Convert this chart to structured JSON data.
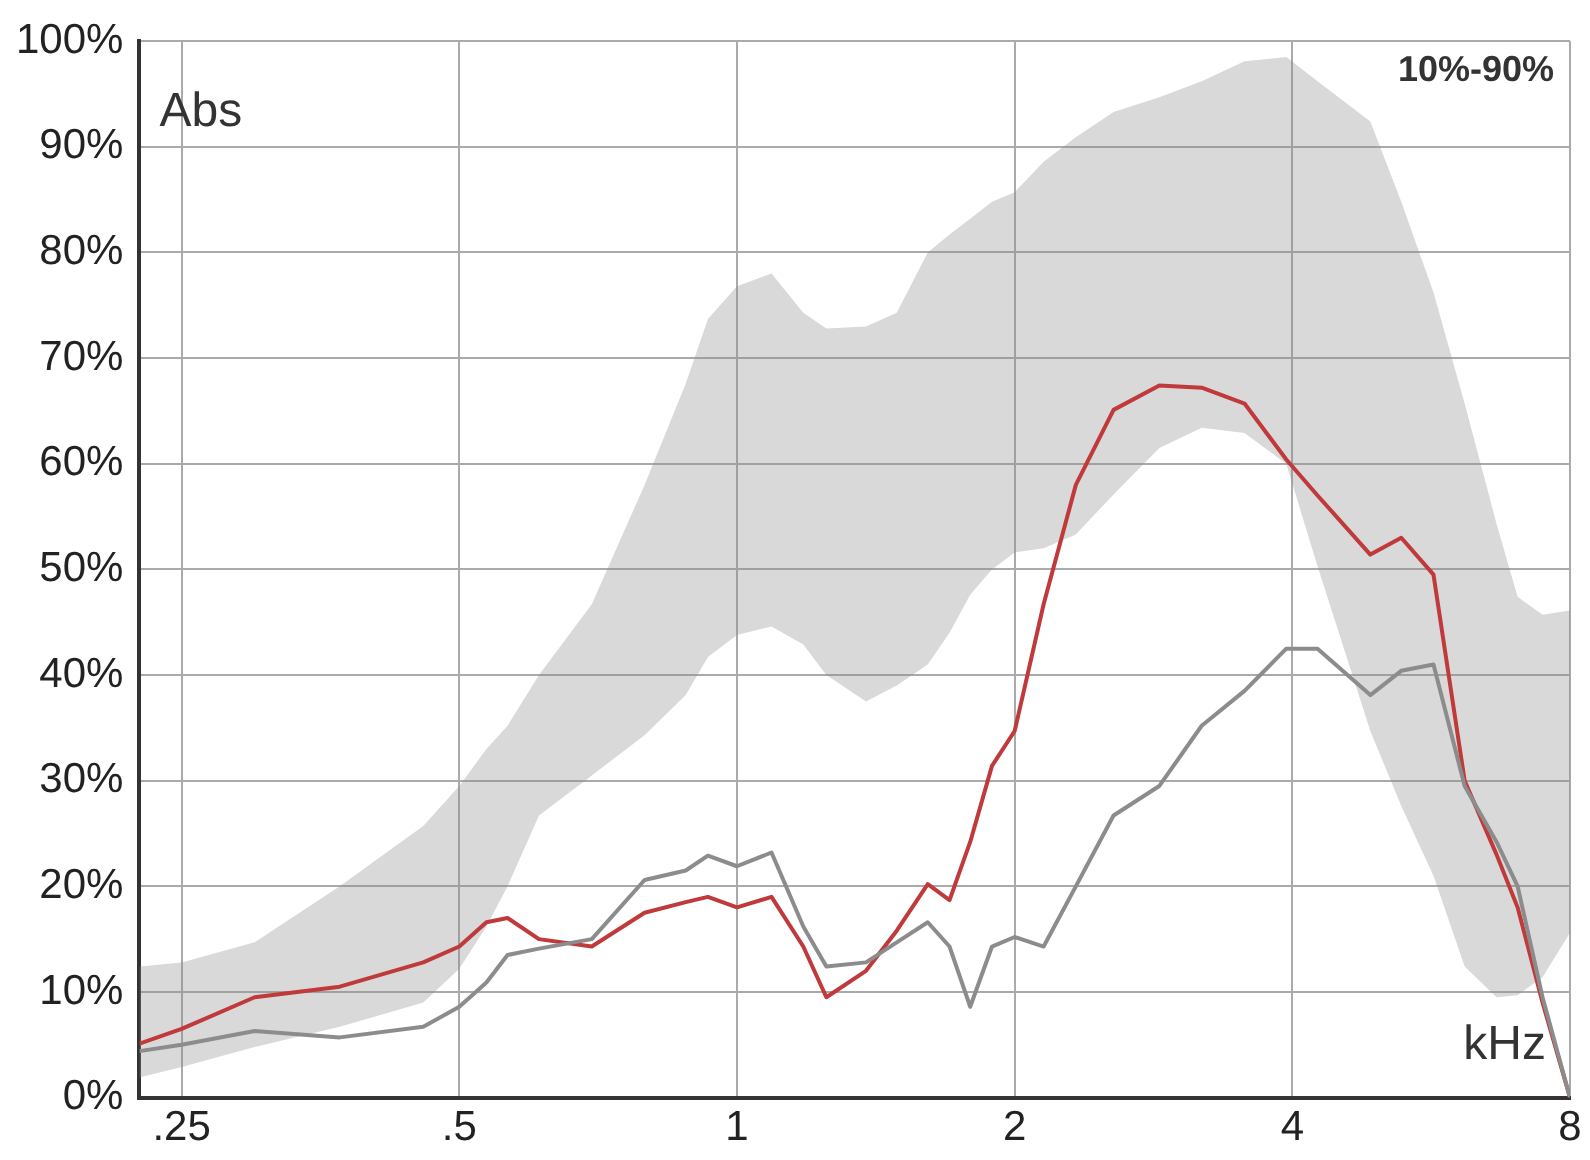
{
  "chart_data": {
    "type": "line",
    "xlabel": "kHz",
    "ylabel": "Abs",
    "log": "x",
    "grid": true,
    "legend": false,
    "marker": "none",
    "line_style": "solid",
    "annotations": [
      "10%-90%"
    ],
    "x": [
      0.225,
      0.25,
      0.3,
      0.371,
      0.457,
      0.5,
      0.535,
      0.564,
      0.61,
      0.696,
      0.794,
      0.88,
      0.93,
      1,
      1.09,
      1.18,
      1.25,
      1.38,
      1.49,
      1.61,
      1.7,
      1.79,
      1.89,
      2,
      2.15,
      2.33,
      2.56,
      2.87,
      3.19,
      3.55,
      3.94,
      4.26,
      4.86,
      5.25,
      5.69,
      6.15,
      6.66,
      7.02,
      7.47,
      8
    ],
    "xlim": [
      0.225,
      8
    ],
    "xticks": [
      {
        "value": 0.25,
        "label": ".25"
      },
      {
        "value": 0.5,
        "label": ".5"
      },
      1,
      2,
      4,
      8
    ],
    "ylim": [
      0,
      100
    ],
    "yticks": [
      {
        "value": 0,
        "label": "0%"
      },
      {
        "value": 10,
        "label": "10%"
      },
      {
        "value": 20,
        "label": "20%"
      },
      {
        "value": 30,
        "label": "30%"
      },
      {
        "value": 40,
        "label": "40%"
      },
      {
        "value": 50,
        "label": "50%"
      },
      {
        "value": 60,
        "label": "60%"
      },
      {
        "value": 70,
        "label": "70%"
      },
      {
        "value": 80,
        "label": "80%"
      },
      {
        "value": 90,
        "label": "90%"
      },
      {
        "value": 100,
        "label": "100%"
      }
    ],
    "series": [
      {
        "color": "#8c8c8c",
        "lower": [
          1.9,
          2.9,
          4.8,
          6.7,
          9,
          12.2,
          16.2,
          20,
          26.7,
          30.5,
          34.3,
          38.1,
          41.7,
          43.8,
          44.6,
          42.9,
          40,
          37.5,
          39,
          41,
          44,
          47.6,
          50,
          51.6,
          52,
          53.3,
          57.1,
          61.5,
          63.4,
          62.9,
          60,
          50.3,
          34.7,
          27.6,
          21,
          12.4,
          9.5,
          9.7,
          11.4,
          15.6
        ],
        "upper": [
          12.4,
          12.8,
          14.7,
          20,
          25.7,
          29.5,
          33,
          35.2,
          40,
          46.7,
          58,
          67.6,
          73.7,
          76.8,
          78,
          74.3,
          72.8,
          73,
          74.3,
          80,
          81.7,
          83.2,
          84.8,
          85.7,
          88.6,
          90.9,
          93.3,
          94.7,
          96.2,
          98.1,
          98.5,
          96.2,
          92.4,
          84.8,
          76.2,
          65.7,
          54.3,
          47.4,
          45.7,
          46.1
        ],
        "values": [
          4.4,
          5,
          6.3,
          5.7,
          6.7,
          8.6,
          10.9,
          13.5,
          14.1,
          15,
          20.6,
          21.5,
          22.9,
          21.9,
          23.2,
          16.2,
          12.4,
          12.8,
          14.7,
          16.6,
          14.3,
          8.6,
          14.3,
          15.2,
          14.3,
          20,
          26.7,
          29.5,
          35.2,
          38.5,
          42.5,
          42.5,
          38.1,
          40.4,
          41,
          29.5,
          24.2,
          20,
          9.5,
          0
        ]
      },
      {
        "color": "#c0393b",
        "values": [
          5.1,
          6.5,
          9.5,
          10.5,
          12.8,
          14.3,
          16.6,
          17,
          15,
          14.3,
          17.5,
          18.5,
          19,
          18,
          19,
          14.3,
          9.5,
          12,
          15.8,
          20.2,
          18.7,
          24.2,
          31.4,
          34.7,
          46.7,
          58,
          65.1,
          67.4,
          67.2,
          65.7,
          60.4,
          57,
          51.4,
          53,
          49.5,
          30,
          23,
          18,
          9,
          0
        ]
      }
    ]
  }
}
